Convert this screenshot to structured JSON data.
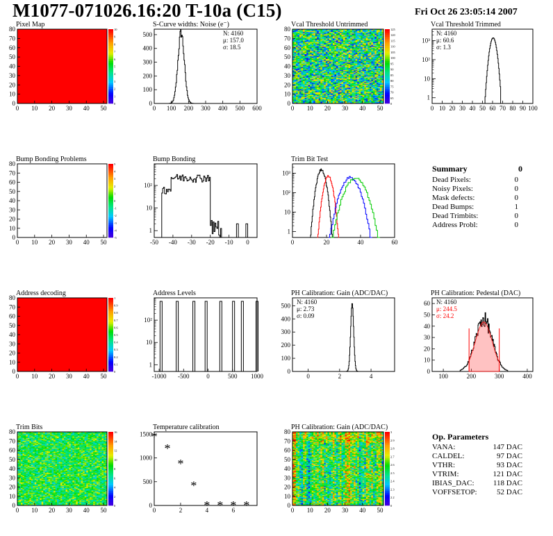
{
  "header": {
    "title": "M1077-071026.16:20 T-10a (C15)",
    "date": "Fri Oct 26 23:05:14 2007"
  },
  "chart_data": [
    {
      "id": "pixel-map",
      "type": "heatmap",
      "title": "Pixel Map",
      "xlim": [
        0,
        52
      ],
      "ylim": [
        0,
        80
      ],
      "xticks": [
        0,
        10,
        20,
        30,
        40,
        50
      ],
      "yticks": [
        0,
        10,
        20,
        30,
        40,
        50,
        60,
        70,
        80
      ],
      "fill": "uniform",
      "uniform_value": 10,
      "zrange": [
        0,
        10
      ],
      "palette_labels": [
        "0",
        "1",
        "2",
        "3",
        "4",
        "5",
        "6",
        "7",
        "8",
        "9",
        "10"
      ]
    },
    {
      "id": "scurve-noise",
      "type": "line",
      "title": "S-Curve widths: Noise (e⁻)",
      "xlim": [
        0,
        600
      ],
      "ylim": [
        0,
        540
      ],
      "xticks": [
        0,
        100,
        200,
        300,
        400,
        500,
        600
      ],
      "yticks": [
        0,
        100,
        200,
        300,
        400,
        500
      ],
      "stats": {
        "N": "N: 4160",
        "mean": "μ: 157.0",
        "sigma": "σ: 18.5"
      },
      "peak": {
        "mean": 157,
        "sigma": 18.5,
        "amplitude": 515
      }
    },
    {
      "id": "vcal-untrimmed",
      "type": "heatmap",
      "title": "Vcal Threshold Untrimmed",
      "xlim": [
        0,
        52
      ],
      "ylim": [
        0,
        80
      ],
      "xticks": [
        0,
        10,
        20,
        30,
        40,
        50
      ],
      "yticks": [
        0,
        10,
        20,
        30,
        40,
        50,
        60,
        70,
        80
      ],
      "fill": "noise",
      "mean": 0.45,
      "spread": 0.2,
      "palette_labels": [
        "0",
        "65",
        "70",
        "75",
        "80",
        "85",
        "90",
        "95",
        "100",
        "105",
        "110",
        "115",
        "120",
        "125"
      ]
    },
    {
      "id": "vcal-trimmed",
      "type": "line",
      "log": true,
      "title": "Vcal Threshold Trimmed",
      "xlim": [
        0,
        100
      ],
      "ylim": [
        0.5,
        4000
      ],
      "xticks": [
        0,
        10,
        20,
        30,
        40,
        50,
        60,
        70,
        80,
        90,
        100
      ],
      "ylabels": [
        "1",
        "10",
        "10²",
        "10³"
      ],
      "stats": {
        "N": "N: 4160",
        "mean": "μ: 60.6",
        "sigma": "σ:  1.3"
      },
      "peak": {
        "mean": 60.6,
        "sigma": 1.3,
        "amplitude": 1400
      }
    },
    {
      "id": "bump-problems",
      "type": "heatmap",
      "title": "Bump Bonding Problems",
      "xlim": [
        0,
        52
      ],
      "ylim": [
        0,
        80
      ],
      "xticks": [
        0,
        10,
        20,
        30,
        40,
        50
      ],
      "yticks": [
        0,
        10,
        20,
        30,
        40,
        50,
        60,
        70,
        80
      ],
      "fill": "empty",
      "palette_labels": [
        "-5",
        "-4",
        "-3",
        "-2",
        "-1",
        "0",
        "1",
        "2",
        "3",
        "4",
        "5"
      ]
    },
    {
      "id": "bump-bonding",
      "type": "line",
      "log": true,
      "title": "Bump Bonding",
      "xlim": [
        -50,
        5
      ],
      "ylim": [
        0.5,
        900
      ],
      "xticks": [
        -50,
        -40,
        -30,
        -20,
        -10,
        0
      ],
      "ylabels": [
        "1",
        "10",
        "10²"
      ],
      "shape": {
        "from": -44,
        "to": -17,
        "level": 250
      }
    },
    {
      "id": "trim-bit-test",
      "type": "line",
      "log": true,
      "title": "Trim Bit Test",
      "xlim": [
        0,
        60
      ],
      "ylim": [
        0.5,
        3000
      ],
      "xticks": [
        0,
        20,
        40,
        60
      ],
      "ylabels": [
        "1",
        "10",
        "10²",
        "10³"
      ],
      "series": [
        {
          "color": "#000000",
          "mean": 17,
          "sigma": 1.6,
          "amplitude": 1500
        },
        {
          "color": "#ff0000",
          "mean": 21,
          "sigma": 1.6,
          "amplitude": 700
        },
        {
          "color": "#0000ff",
          "mean": 34,
          "sigma": 3.2,
          "amplitude": 600
        },
        {
          "color": "#00cc00",
          "mean": 37,
          "sigma": 3.6,
          "amplitude": 550
        }
      ]
    },
    {
      "id": "address-decoding",
      "type": "heatmap",
      "title": "Address decoding",
      "xlim": [
        0,
        52
      ],
      "ylim": [
        0,
        80
      ],
      "xticks": [
        0,
        10,
        20,
        30,
        40,
        50
      ],
      "yticks": [
        0,
        10,
        20,
        30,
        40,
        50,
        60,
        70,
        80
      ],
      "fill": "uniform",
      "uniform_value": 1,
      "zrange": [
        0,
        1
      ],
      "palette_labels": [
        "0",
        "0.1",
        "0.2",
        "0.3",
        "0.4",
        "0.5",
        "0.6",
        "0.7",
        "0.8",
        "0.9",
        "1"
      ]
    },
    {
      "id": "address-levels",
      "type": "line",
      "log": true,
      "title": "Address Levels",
      "xlim": [
        -1100,
        1000
      ],
      "ylim": [
        0.5,
        1000
      ],
      "xticks": [
        -1000,
        -500,
        0,
        500,
        1000
      ],
      "ylabels": [
        "1",
        "10",
        "10²"
      ],
      "spikes": [
        -960,
        -630,
        -290,
        -40,
        260,
        520,
        700,
        1000
      ]
    },
    {
      "id": "ph-gain",
      "type": "line",
      "title": "PH Calibration: Gain (ADC/DAC)",
      "xlim": [
        -1,
        5.5
      ],
      "ylim": [
        0,
        560
      ],
      "xticks": [
        0,
        2,
        4
      ],
      "yticks": [
        0,
        100,
        200,
        300,
        400,
        500
      ],
      "stats": {
        "N": "N: 4160",
        "mean": "μ: 2.73",
        "sigma": "σ: 0.09"
      },
      "peak": {
        "mean": 2.8,
        "sigma": 0.08,
        "amplitude": 520
      }
    },
    {
      "id": "ph-pedestal",
      "type": "line",
      "title": "PH Calibration: Pedestal (DAC)",
      "xlim": [
        60,
        420
      ],
      "ylim": [
        0,
        65
      ],
      "xticks": [
        100,
        200,
        300,
        400
      ],
      "yticks": [
        0,
        10,
        20,
        30,
        40,
        50,
        60
      ],
      "stats": {
        "N": "N: 4160",
        "mean": "μ: 244.5",
        "sigma": "σ: 24.2"
      },
      "peak": {
        "mean": 244.5,
        "sigma": 24.2,
        "amplitude": 46
      },
      "markers": [
        192,
        300
      ]
    },
    {
      "id": "trim-bits",
      "type": "heatmap",
      "title": "Trim Bits",
      "xlim": [
        0,
        52
      ],
      "ylim": [
        0,
        80
      ],
      "xticks": [
        0,
        10,
        20,
        30,
        40,
        50
      ],
      "yticks": [
        0,
        10,
        20,
        30,
        40,
        50,
        60,
        70,
        80
      ],
      "fill": "noise",
      "mean": 0.5,
      "spread": 0.12,
      "palette_labels": [
        "0",
        "2",
        "4",
        "6",
        "8",
        "10",
        "12",
        "14",
        "16"
      ]
    },
    {
      "id": "temperature-calibration",
      "type": "scatter",
      "title": "Temperature calibration",
      "xlim": [
        0,
        7.8
      ],
      "ylim": [
        0,
        1550
      ],
      "xticks": [
        0,
        2,
        4,
        6
      ],
      "yticks": [
        0,
        500,
        1000,
        1500
      ],
      "points": [
        [
          0,
          1450
        ],
        [
          1,
          1200
        ],
        [
          2,
          880
        ],
        [
          3,
          420
        ],
        [
          4,
          0
        ],
        [
          5,
          0
        ],
        [
          6,
          0
        ],
        [
          7,
          0
        ]
      ]
    },
    {
      "id": "ph-gain-map",
      "type": "heatmap",
      "title": "PH Calibration: Gain (ADC/DAC)",
      "xlim": [
        0,
        52
      ],
      "ylim": [
        0,
        80
      ],
      "xticks": [
        0,
        10,
        20,
        30,
        40,
        50
      ],
      "yticks": [
        0,
        10,
        20,
        30,
        40,
        50,
        60,
        70,
        80
      ],
      "fill": "columns",
      "palette_labels": [
        "0",
        "2.2",
        "2.3",
        "2.4",
        "2.5",
        "2.6",
        "2.7",
        "2.8",
        "2.9",
        "3"
      ]
    }
  ],
  "summary": {
    "title": "Summary",
    "value": "0",
    "rows": [
      {
        "label": "Dead Pixels:",
        "value": "0"
      },
      {
        "label": "Noisy Pixels:",
        "value": "0"
      },
      {
        "label": "Mask defects:",
        "value": "0"
      },
      {
        "label": "Dead Bumps:",
        "value": "1"
      },
      {
        "label": "Dead Trimbits:",
        "value": "0"
      },
      {
        "label": "Address Probl:",
        "value": "0"
      }
    ]
  },
  "op_parameters": {
    "title": "Op. Parameters",
    "rows": [
      {
        "name": "VANA:",
        "value": "147 DAC"
      },
      {
        "name": "CALDEL:",
        "value": "97 DAC"
      },
      {
        "name": "VTHR:",
        "value": "93 DAC"
      },
      {
        "name": "VTRIM:",
        "value": "121 DAC"
      },
      {
        "name": "IBIAS_DAC:",
        "value": "118 DAC"
      },
      {
        "name": "VOFFSETOP:",
        "value": "52 DAC"
      }
    ]
  }
}
